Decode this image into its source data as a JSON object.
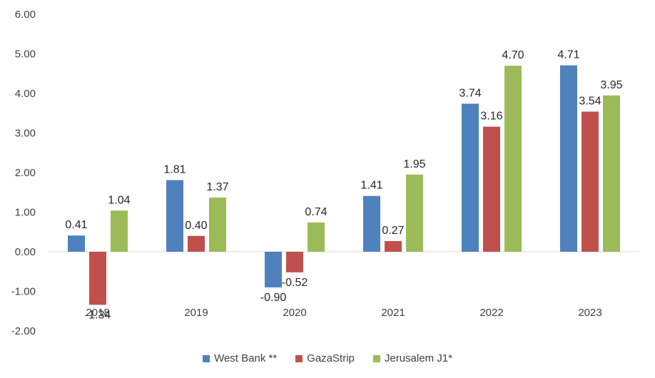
{
  "chart_data": {
    "type": "bar",
    "categories": [
      "2018",
      "2019",
      "2020",
      "2021",
      "2022",
      "2023"
    ],
    "series": [
      {
        "name": "West Bank **",
        "color": "#4F81BD",
        "values": [
          0.41,
          1.81,
          -0.9,
          1.41,
          3.74,
          4.71
        ]
      },
      {
        "name": "GazaStrip",
        "color": "#C0504D",
        "values": [
          -1.34,
          0.4,
          -0.52,
          0.27,
          3.16,
          3.54
        ]
      },
      {
        "name": "Jerusalem J1*",
        "color": "#9BBB59",
        "values": [
          1.04,
          1.37,
          0.74,
          1.95,
          4.7,
          3.95
        ]
      }
    ],
    "yticks": [
      "6.00",
      "5.00",
      "4.00",
      "3.00",
      "2.00",
      "1.00",
      "0.00",
      "-1.00",
      "-2.00"
    ],
    "ylim": [
      -2,
      6
    ],
    "data_labels": [
      [
        "0.41",
        "1.81",
        "-0.90",
        "1.41",
        "3.74",
        "4.71"
      ],
      [
        "-1.34",
        "0.40",
        "-0.52",
        "0.27",
        "3.16",
        "3.54"
      ],
      [
        "1.04",
        "1.37",
        "0.74",
        "1.95",
        "4.70",
        "3.95"
      ]
    ],
    "grid": false,
    "legend_position": "bottom"
  }
}
